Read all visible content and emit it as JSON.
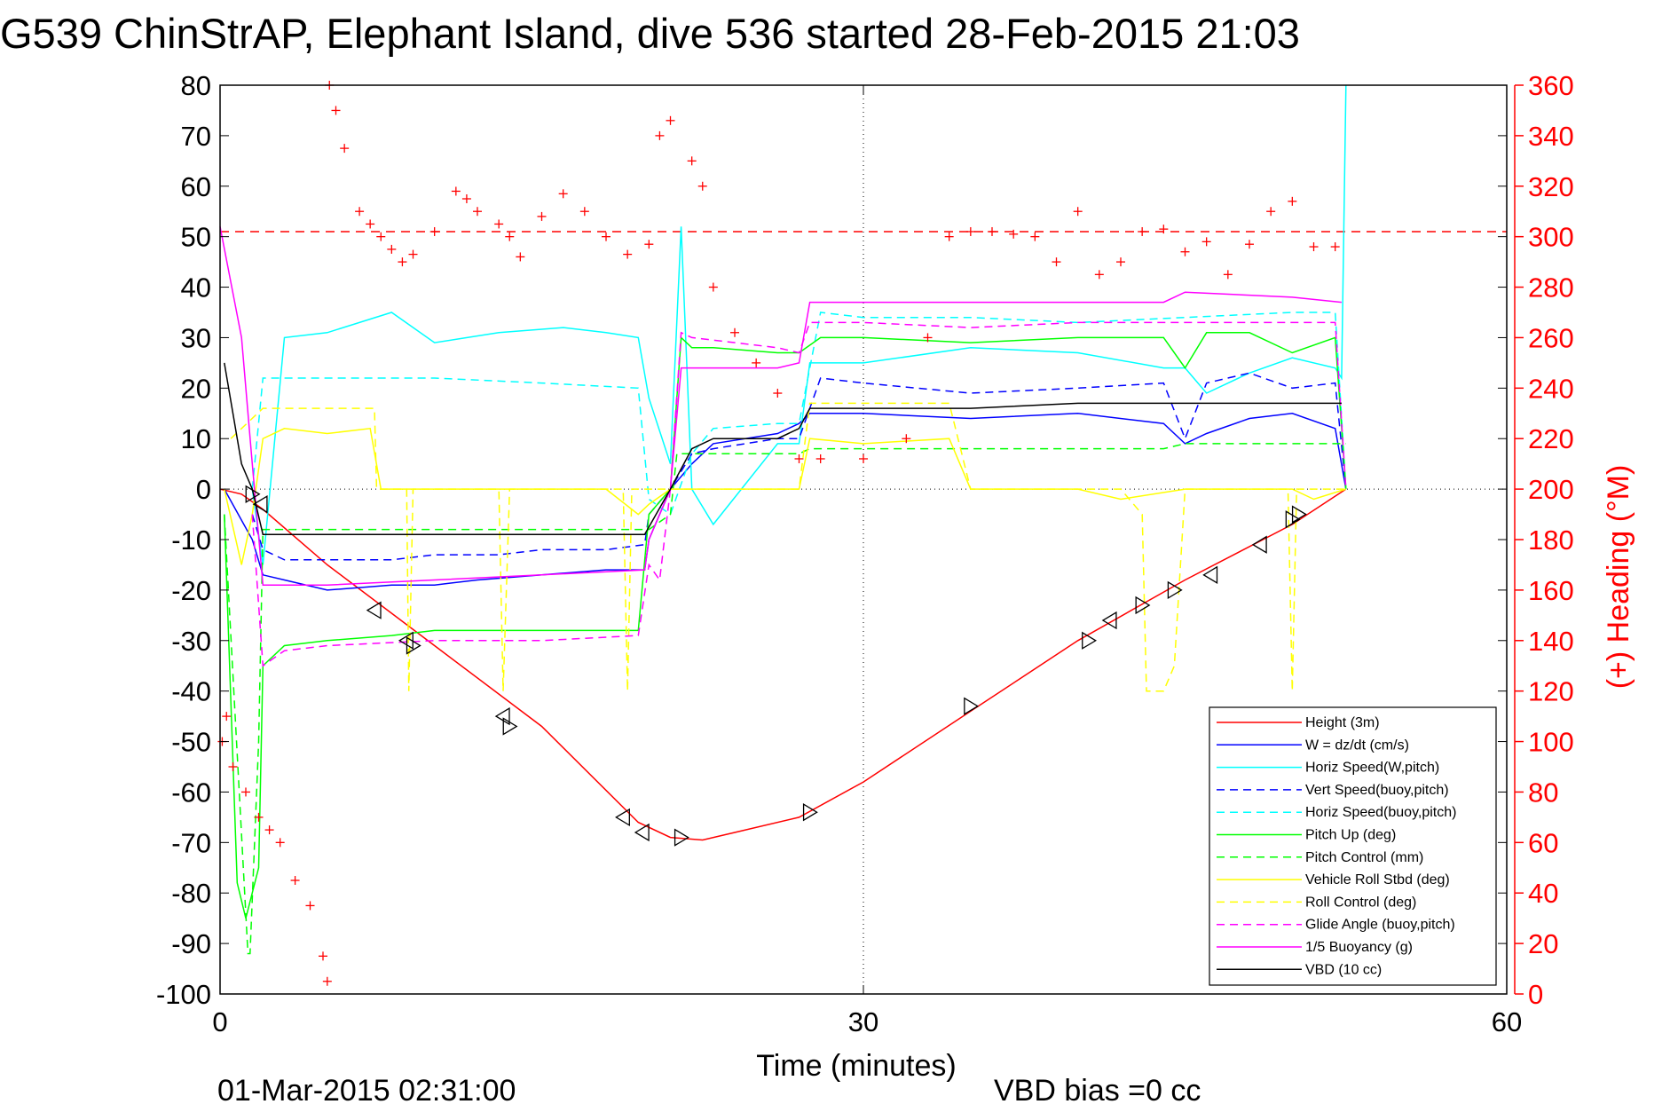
{
  "chart_data": {
    "type": "line",
    "title": "G539 ChinStrAP, Elephant Island, dive 536 started 28-Feb-2015 21:03",
    "xlabel": "Time (minutes)",
    "ylabel_right": "(+) Heading (°M)",
    "footer_left": "01-Mar-2015 02:31:00",
    "footer_right": "VBD bias =0 cc",
    "xlim": [
      0,
      60
    ],
    "ylim": [
      -100,
      80
    ],
    "ylim_right": [
      0,
      360
    ],
    "x_ticks": [
      "0",
      "30",
      "60"
    ],
    "x_tick_values": [
      0,
      30,
      60
    ],
    "y_ticks": [
      "80",
      "70",
      "60",
      "50",
      "40",
      "30",
      "20",
      "10",
      "0",
      "-10",
      "-20",
      "-30",
      "-40",
      "-50",
      "-60",
      "-70",
      "-80",
      "-90",
      "-100"
    ],
    "y_tick_values": [
      80,
      70,
      60,
      50,
      40,
      30,
      20,
      10,
      0,
      -10,
      -20,
      -30,
      -40,
      -50,
      -60,
      -70,
      -80,
      -90,
      -100
    ],
    "y2_ticks": [
      "360",
      "340",
      "320",
      "300",
      "280",
      "260",
      "240",
      "220",
      "200",
      "180",
      "160",
      "140",
      "120",
      "100",
      "80",
      "60",
      "40",
      "20",
      "0"
    ],
    "y2_tick_values": [
      360,
      340,
      320,
      300,
      280,
      260,
      240,
      220,
      200,
      180,
      160,
      140,
      120,
      100,
      80,
      60,
      40,
      20,
      0
    ],
    "grid": "dotted at x=30 and y=0",
    "legend_position": "bottom-right",
    "series": [
      {
        "name": "Height (3m)",
        "color": "#ff0000",
        "style": "solid",
        "x": [
          0,
          1,
          2,
          5,
          10,
          15,
          19.5,
          21,
          22.5,
          24,
          27,
          30,
          35,
          40,
          45,
          50,
          52.5
        ],
        "y": [
          0,
          -1,
          -4,
          -15,
          -31,
          -47,
          -66,
          -69,
          -69.5,
          -68,
          -65,
          -58,
          -44,
          -30,
          -18,
          -7,
          0
        ]
      },
      {
        "name": "W = dz/dt (cm/s)",
        "color": "#0000ff",
        "style": "solid",
        "x": [
          0.2,
          1.5,
          2,
          3,
          5,
          8,
          10,
          12,
          15,
          18,
          19.8,
          20,
          20.5,
          21,
          22,
          23,
          26,
          27,
          27.5,
          30,
          35,
          40,
          44,
          45,
          46,
          48,
          50,
          52,
          52.5
        ],
        "y": [
          0,
          -10,
          -17,
          -18,
          -20,
          -19,
          -19,
          -18,
          -17,
          -16,
          -16,
          -10,
          -5,
          0,
          5,
          9,
          11,
          13,
          15,
          15,
          14,
          15,
          13,
          9,
          11,
          14,
          15,
          12,
          0
        ]
      },
      {
        "name": "Horiz Speed(W,pitch)",
        "color": "#00ffff",
        "style": "solid",
        "x": [
          1.5,
          2,
          3,
          5,
          8,
          10,
          13,
          16,
          18,
          19.5,
          20,
          21,
          21.5,
          22,
          23,
          26,
          27,
          27.5,
          30,
          35,
          40,
          44,
          45,
          46,
          48,
          50,
          52,
          52.3,
          52.5
        ],
        "y": [
          0,
          -15,
          30,
          31,
          35,
          29,
          31,
          32,
          31,
          30,
          18,
          5,
          52,
          0,
          -7,
          9,
          9,
          25,
          25,
          28,
          27,
          24,
          24,
          19,
          23,
          26,
          24,
          22,
          80
        ]
      },
      {
        "name": "Vert Speed(buoy,pitch)",
        "color": "#0000ff",
        "style": "dashed",
        "x": [
          1.5,
          2,
          3,
          5,
          8,
          10,
          13,
          15,
          18,
          19.8,
          20,
          21,
          22,
          23,
          26,
          27,
          28,
          30,
          35,
          40,
          44,
          45,
          46,
          48,
          50,
          52,
          52.5
        ],
        "y": [
          -5,
          -12,
          -14,
          -14,
          -14,
          -13,
          -13,
          -12,
          -12,
          -11,
          -5,
          0,
          7,
          8,
          10,
          10,
          22,
          21,
          19,
          20,
          21,
          10,
          21,
          23,
          20,
          21,
          0
        ]
      },
      {
        "name": "Horiz Speed(buoy,pitch)",
        "color": "#00ffff",
        "style": "dashed",
        "x": [
          1.5,
          2,
          5,
          10,
          15,
          19.5,
          20,
          21,
          22,
          23,
          26,
          27,
          28,
          30,
          35,
          40,
          45,
          50,
          52,
          52.5
        ],
        "y": [
          0,
          22,
          22,
          22,
          21,
          20,
          -2,
          -5,
          7,
          12,
          13,
          13,
          35,
          34,
          34,
          33,
          34,
          35,
          35,
          0
        ]
      },
      {
        "name": "Pitch Up (deg)",
        "color": "#00ff00",
        "style": "solid",
        "x": [
          0.2,
          0.8,
          1.2,
          1.8,
          2,
          3,
          5,
          8,
          10,
          13,
          15,
          19.5,
          20,
          21,
          21.5,
          22,
          23,
          26,
          27,
          28,
          30,
          35,
          40,
          44,
          45,
          46,
          48,
          50,
          52,
          52.5
        ],
        "y": [
          -5,
          -78,
          -85,
          -75,
          -35,
          -31,
          -30,
          -29,
          -28,
          -28,
          -28,
          -28,
          -5,
          0,
          30,
          28,
          28,
          27,
          27,
          30,
          30,
          29,
          30,
          30,
          24,
          31,
          31,
          27,
          30,
          0
        ]
      },
      {
        "name": "Pitch Control (mm)",
        "color": "#00ff00",
        "style": "dashed",
        "x": [
          0.2,
          1.3,
          1.4,
          1.8,
          2,
          3,
          10,
          19.5,
          20,
          21,
          21.3,
          22,
          26,
          27,
          27.5,
          30,
          40,
          44,
          45,
          50,
          52.5
        ],
        "y": [
          -5,
          -92,
          -92,
          -50,
          -8,
          -8,
          -8,
          -8,
          -8,
          -5,
          7,
          7,
          7,
          7,
          8,
          8,
          8,
          8,
          9,
          9,
          9
        ]
      },
      {
        "name": "Vehicle Roll Stbd (deg)",
        "color": "#ffff00",
        "style": "solid",
        "x": [
          0.2,
          1,
          1.5,
          2,
          3,
          5,
          7,
          7.5,
          8,
          9,
          12,
          15,
          18,
          19.5,
          20,
          21,
          23,
          26,
          27,
          27.5,
          30,
          34,
          35,
          40,
          42,
          45,
          48,
          50,
          51,
          52.5
        ],
        "y": [
          0,
          -15,
          -5,
          10,
          12,
          11,
          12,
          0,
          0,
          0,
          0,
          0,
          0,
          -5,
          -3,
          0,
          0,
          0,
          0,
          10,
          9,
          10,
          0,
          0,
          -2,
          0,
          0,
          0,
          -2,
          0
        ]
      },
      {
        "name": "Roll Control (deg)",
        "color": "#ffff00",
        "style": "dashed",
        "x": [
          0.5,
          2,
          3,
          7.2,
          7.3,
          8.7,
          8.8,
          9,
          13,
          13.2,
          13.5,
          18.8,
          19,
          19.2,
          20,
          23,
          26,
          27,
          27.5,
          30,
          34,
          35,
          42,
          43,
          43.2,
          44,
          44.5,
          45,
          48,
          49.8,
          50,
          50.2,
          52.5
        ],
        "y": [
          10,
          16,
          16,
          16,
          0,
          0,
          -40,
          0,
          0,
          -40,
          0,
          0,
          -40,
          0,
          0,
          0,
          0,
          0,
          17,
          17,
          17,
          0,
          0,
          -5,
          -40,
          -40,
          -35,
          0,
          0,
          0,
          -40,
          0,
          0
        ]
      },
      {
        "name": "Glide Angle (buoy,pitch)",
        "color": "#ff00ff",
        "style": "dashed",
        "x": [
          1.5,
          2,
          3,
          5,
          10,
          15,
          19.5,
          20,
          20.5,
          21,
          21.5,
          22,
          26,
          27,
          27.5,
          30,
          35,
          40,
          45,
          50,
          52,
          52.5
        ],
        "y": [
          -5,
          -35,
          -32,
          -31,
          -30,
          -30,
          -29,
          -15,
          -18,
          0,
          31,
          30,
          28,
          27,
          33,
          33,
          32,
          33,
          33,
          33,
          33,
          0
        ]
      },
      {
        "name": "1/5 Buoyancy (g)",
        "color": "#ff00ff",
        "style": "solid",
        "x": [
          0,
          1,
          1.5,
          2,
          5,
          10,
          15,
          19.8,
          20,
          21,
          21.5,
          22,
          23,
          26,
          27,
          27.5,
          30,
          35,
          40,
          44,
          44.5,
          45,
          50,
          52.3
        ],
        "y": [
          52,
          30,
          5,
          -19,
          -19,
          -18,
          -17,
          -16,
          -10,
          0,
          24,
          24,
          24,
          24,
          25,
          37,
          37,
          37,
          37,
          37,
          38,
          39,
          38,
          37
        ]
      },
      {
        "name": "VBD (10 cc)",
        "color": "#000000",
        "style": "solid",
        "x": [
          0.2,
          0.6,
          1,
          1.5,
          2,
          3,
          10,
          19.5,
          19.8,
          21,
          22,
          23,
          26,
          27,
          27.5,
          30,
          35,
          40,
          45,
          50,
          52.3
        ],
        "y": [
          25,
          15,
          5,
          0,
          -9,
          -9,
          -9,
          -9,
          -9,
          0,
          8,
          10,
          10,
          12,
          16,
          16,
          16,
          17,
          17,
          17,
          17
        ]
      }
    ],
    "heading_series": {
      "name": "(+) Heading (°M)",
      "color": "#ff0000",
      "marker": "+",
      "x": [
        0.1,
        0.3,
        0.6,
        1.2,
        1.8,
        2.3,
        2.8,
        3.5,
        4.2,
        4.8,
        5.0,
        5.1,
        5.4,
        5.8,
        6.5,
        7,
        7.5,
        8,
        8.5,
        9,
        10,
        11,
        11.5,
        12,
        13,
        13.5,
        14,
        15,
        16,
        17,
        18,
        19,
        20,
        20.5,
        21,
        22,
        22.5,
        23,
        24,
        25,
        26,
        27,
        28,
        30,
        32,
        33,
        34,
        35,
        36,
        37,
        38,
        39,
        40,
        41,
        42,
        43,
        44,
        45,
        46,
        47,
        48,
        49,
        50,
        51,
        52
      ],
      "y": [
        100,
        110,
        90,
        80,
        70,
        65,
        60,
        45,
        35,
        15,
        5,
        360,
        350,
        335,
        310,
        305,
        300,
        295,
        290,
        293,
        302,
        318,
        315,
        310,
        305,
        300,
        292,
        308,
        317,
        310,
        300,
        293,
        297,
        340,
        346,
        330,
        320,
        280,
        262,
        250,
        238,
        212,
        212,
        212,
        220,
        260,
        300,
        302,
        302,
        301,
        300,
        290,
        310,
        285,
        290,
        302,
        303,
        294,
        298,
        285,
        297,
        310,
        314,
        296,
        296
      ]
    }
  },
  "legend": [
    {
      "label": "Height (3m)",
      "color": "#ff0000",
      "dash": false
    },
    {
      "label": "W = dz/dt (cm/s)",
      "color": "#0000ff",
      "dash": false
    },
    {
      "label": "Horiz Speed(W,pitch)",
      "color": "#00ffff",
      "dash": false
    },
    {
      "label": "Vert Speed(buoy,pitch)",
      "color": "#0000ff",
      "dash": true
    },
    {
      "label": "Horiz Speed(buoy,pitch)",
      "color": "#00ffff",
      "dash": true
    },
    {
      "label": "Pitch Up (deg)",
      "color": "#00ff00",
      "dash": false
    },
    {
      "label": "Pitch Control (mm)",
      "color": "#00ff00",
      "dash": true
    },
    {
      "label": "Vehicle Roll Stbd (deg)",
      "color": "#ffff00",
      "dash": false
    },
    {
      "label": "Roll Control (deg)",
      "color": "#ffff00",
      "dash": true
    },
    {
      "label": "Glide Angle (buoy,pitch)",
      "color": "#ff00ff",
      "dash": true
    },
    {
      "label": "1/5 Buoyancy (g)",
      "color": "#ff00ff",
      "dash": false
    },
    {
      "label": "VBD (10 cc)",
      "color": "#000000",
      "dash": false
    }
  ],
  "reference_lines": {
    "heading_target_deg": 302,
    "heading_target_color": "#ff0000"
  },
  "triangle_markers": {
    "x": [
      1.5,
      1.9,
      7.2,
      8.7,
      9.0,
      13.2,
      13.5,
      18.8,
      19.7,
      21.5,
      27.5,
      35,
      40.5,
      41.5,
      43,
      44.5,
      46.2,
      48.5,
      50,
      50.3
    ],
    "y": [
      -1,
      -3,
      -24,
      -30,
      -31,
      -45,
      -47,
      -65,
      -68,
      -69,
      -64,
      -43,
      -30,
      -26,
      -23,
      -20,
      -17,
      -11,
      -6,
      -5
    ],
    "dir": [
      "r",
      "l",
      "l",
      "l",
      "r",
      "l",
      "r",
      "l",
      "l",
      "r",
      "r",
      "r",
      "r",
      "l",
      "r",
      "r",
      "l",
      "l",
      "r",
      "r"
    ]
  }
}
